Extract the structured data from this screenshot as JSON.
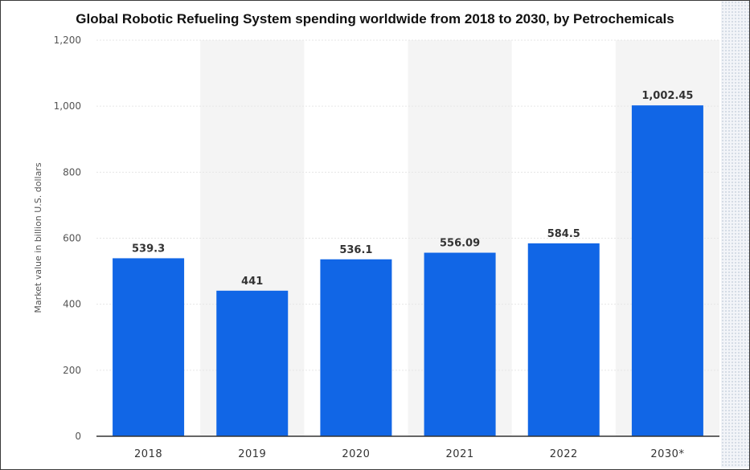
{
  "chart_data": {
    "type": "bar",
    "title": "Global Robotic Refueling System spending worldwide from 2018 to 2030, by Petrochemicals",
    "xlabel": "",
    "ylabel": "Market value in billion U.S. dollars",
    "categories": [
      "2018",
      "2019",
      "2020",
      "2021",
      "2022",
      "2030*"
    ],
    "values": [
      539.3,
      441,
      536.1,
      556.09,
      584.5,
      1002.45
    ],
    "value_labels": [
      "539.3",
      "441",
      "536.1",
      "556.09",
      "584.5",
      "1,002.45"
    ],
    "ylim": [
      0,
      1200
    ],
    "yticks": [
      0,
      200,
      400,
      600,
      800,
      1000,
      1200
    ],
    "ytick_labels": [
      "0",
      "200",
      "400",
      "600",
      "800",
      "1,000",
      "1,200"
    ],
    "grid": true,
    "alternate_column_shading": true,
    "bar_color": "#1166e6",
    "shade_color": "#f4f4f4",
    "grid_color": "#e6e6e6"
  }
}
